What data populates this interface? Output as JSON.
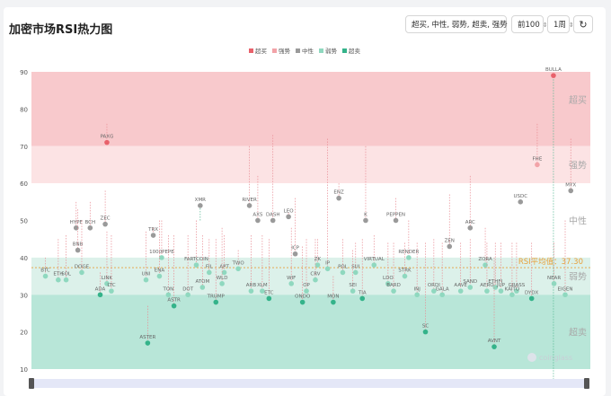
{
  "header": {
    "title": "加密市场RSI热力图",
    "filter_label": "超买, 中性, 弱势, 超卖, 强势",
    "top_label": "前100",
    "interval_label": "1周",
    "refresh_icon": "refresh-icon"
  },
  "colors": {
    "overbought": "#f8c9cc",
    "strong": "#fce3e4",
    "neutral": "#ffffff",
    "weak": "#dcf1ea",
    "oversold": "#b8e6d8",
    "dot_red": "#e8616b",
    "dot_pink": "#f2a3a8",
    "dot_gray": "#9a9a9a",
    "dot_lightgreen": "#8fd8bf",
    "dot_green": "#34b38a",
    "avg_line": "#e8a03a"
  },
  "chart_data": {
    "type": "scatter",
    "ylim": [
      10,
      90
    ],
    "yticks": [
      10,
      20,
      30,
      40,
      50,
      60,
      70,
      80,
      90
    ],
    "legend": [
      {
        "name": "超买",
        "color": "#e8616b"
      },
      {
        "name": "强势",
        "color": "#f2a3a8"
      },
      {
        "name": "中性",
        "color": "#9a9a9a"
      },
      {
        "name": "弱势",
        "color": "#8fd8bf"
      },
      {
        "name": "超卖",
        "color": "#34b38a"
      }
    ],
    "zones": [
      {
        "name": "超买",
        "from": 70,
        "to": 90
      },
      {
        "name": "强势",
        "from": 60,
        "to": 70
      },
      {
        "name": "中性",
        "from": 40,
        "to": 60
      },
      {
        "name": "弱势",
        "from": 30,
        "to": 40
      },
      {
        "name": "超卖",
        "from": 10,
        "to": 30
      }
    ],
    "zone_labels": [
      {
        "text": "超买",
        "y": 82.5
      },
      {
        "text": "强势",
        "y": 65
      },
      {
        "text": "中性",
        "y": 50
      },
      {
        "text": "弱势",
        "y": 35
      },
      {
        "text": "超卖",
        "y": 20
      }
    ],
    "average": {
      "label": "RSI平均值：37.30",
      "value": 37.3
    },
    "watermark": "coinglass",
    "points": [
      {
        "name": "BULLA",
        "x": 0.934,
        "y": 89,
        "cls": "ob",
        "prev": 5
      },
      {
        "name": "PAXG",
        "x": 0.135,
        "y": 71,
        "cls": "ob",
        "prev": 76
      },
      {
        "name": "FHE",
        "x": 0.905,
        "y": 65,
        "cls": "st",
        "prev": 76
      },
      {
        "name": "MYX",
        "x": 0.965,
        "y": 58,
        "cls": "ne",
        "prev": 72
      },
      {
        "name": "USDC",
        "x": 0.875,
        "y": 55,
        "cls": "ne",
        "prev": 55
      },
      {
        "name": "ENZ",
        "x": 0.55,
        "y": 56,
        "cls": "ne",
        "prev": 60
      },
      {
        "name": "XMR",
        "x": 0.302,
        "y": 54,
        "cls": "ne",
        "prev": 50
      },
      {
        "name": "RIVER",
        "x": 0.39,
        "y": 54,
        "cls": "ne",
        "prev": 70
      },
      {
        "name": "AXS",
        "x": 0.405,
        "y": 50,
        "cls": "ne",
        "prev": 62
      },
      {
        "name": "DASH",
        "x": 0.432,
        "y": 50,
        "cls": "ne",
        "prev": 73
      },
      {
        "name": "ZEC",
        "x": 0.132,
        "y": 49,
        "cls": "ne",
        "prev": 58
      },
      {
        "name": "BCH",
        "x": 0.105,
        "y": 48,
        "cls": "ne",
        "prev": 55
      },
      {
        "name": "HYPE",
        "x": 0.08,
        "y": 48,
        "cls": "ne",
        "prev": 55
      },
      {
        "name": "TRX",
        "x": 0.218,
        "y": 46,
        "cls": "ne",
        "prev": 48
      },
      {
        "name": "PEPPEN",
        "x": 0.652,
        "y": 50,
        "cls": "ne",
        "prev": 56
      },
      {
        "name": "K",
        "x": 0.598,
        "y": 50,
        "cls": "ne",
        "prev": 70
      },
      {
        "name": "ARC",
        "x": 0.785,
        "y": 48,
        "cls": "ne",
        "prev": 62
      },
      {
        "name": "ZEN",
        "x": 0.748,
        "y": 43,
        "cls": "ne",
        "prev": 57
      },
      {
        "name": "LEO",
        "x": 0.46,
        "y": 51,
        "cls": "ne",
        "prev": 52
      },
      {
        "name": "ICP",
        "x": 0.472,
        "y": 41,
        "cls": "ne",
        "prev": 56
      },
      {
        "name": "BNB",
        "x": 0.083,
        "y": 42,
        "cls": "ne",
        "prev": 53
      },
      {
        "name": "1000PEPE",
        "x": 0.233,
        "y": 40,
        "cls": "wk",
        "prev": 50
      },
      {
        "name": "ZK",
        "x": 0.512,
        "y": 38,
        "cls": "wk",
        "prev": 45
      },
      {
        "name": "IP",
        "x": 0.53,
        "y": 37,
        "cls": "wk",
        "prev": 72
      },
      {
        "name": "RENDER",
        "x": 0.675,
        "y": 40,
        "cls": "wk",
        "prev": 50
      },
      {
        "name": "VIRTUAL",
        "x": 0.613,
        "y": 38,
        "cls": "wk",
        "prev": 46
      },
      {
        "name": "ZORA",
        "x": 0.812,
        "y": 38,
        "cls": "wk",
        "prev": 48
      },
      {
        "name": "FARTCOIN",
        "x": 0.295,
        "y": 38,
        "cls": "wk",
        "prev": 50
      },
      {
        "name": "DOGE",
        "x": 0.09,
        "y": 36,
        "cls": "wk",
        "prev": 50
      },
      {
        "name": "FIL",
        "x": 0.318,
        "y": 36,
        "cls": "wk",
        "prev": 45
      },
      {
        "name": "APT",
        "x": 0.345,
        "y": 36,
        "cls": "wk",
        "prev": 46
      },
      {
        "name": "TWO",
        "x": 0.37,
        "y": 37,
        "cls": "wk",
        "prev": 42
      },
      {
        "name": "ENA",
        "x": 0.229,
        "y": 35,
        "cls": "wk",
        "prev": 50
      },
      {
        "name": "WLD",
        "x": 0.341,
        "y": 33,
        "cls": "wk",
        "prev": 48
      },
      {
        "name": "WIF",
        "x": 0.465,
        "y": 33,
        "cls": "wk",
        "prev": 48
      },
      {
        "name": "CRV",
        "x": 0.508,
        "y": 34,
        "cls": "wk",
        "prev": 45
      },
      {
        "name": "POL",
        "x": 0.557,
        "y": 36,
        "cls": "wk",
        "prev": 45
      },
      {
        "name": "SUI",
        "x": 0.58,
        "y": 36,
        "cls": "wk",
        "prev": 44
      },
      {
        "name": "STRK",
        "x": 0.668,
        "y": 35,
        "cls": "wk",
        "prev": 44
      },
      {
        "name": "SAND",
        "x": 0.785,
        "y": 32,
        "cls": "wk",
        "prev": 45
      },
      {
        "name": "AAVE",
        "x": 0.768,
        "y": 31,
        "cls": "wk",
        "prev": 44
      },
      {
        "name": "ETHFI",
        "x": 0.83,
        "y": 32,
        "cls": "wk",
        "prev": 44
      },
      {
        "name": "LDO",
        "x": 0.638,
        "y": 33,
        "cls": "wk",
        "prev": 44
      },
      {
        "name": "BARD",
        "x": 0.648,
        "y": 31,
        "cls": "wk",
        "prev": 44
      },
      {
        "name": "INJ",
        "x": 0.69,
        "y": 30,
        "cls": "wk",
        "prev": 44
      },
      {
        "name": "GALA",
        "x": 0.735,
        "y": 30,
        "cls": "wk",
        "prev": 44
      },
      {
        "name": "ORDI",
        "x": 0.72,
        "y": 31,
        "cls": "wk",
        "prev": 45
      },
      {
        "name": "AERO",
        "x": 0.815,
        "y": 31,
        "cls": "wk",
        "prev": 44
      },
      {
        "name": "ATOM",
        "x": 0.306,
        "y": 32,
        "cls": "wk",
        "prev": 46
      },
      {
        "name": "ARB",
        "x": 0.393,
        "y": 31,
        "cls": "wk",
        "prev": 46
      },
      {
        "name": "XLM",
        "x": 0.413,
        "y": 31,
        "cls": "wk",
        "prev": 46
      },
      {
        "name": "SEI",
        "x": 0.575,
        "y": 31,
        "cls": "wk",
        "prev": 42
      },
      {
        "name": "DOT",
        "x": 0.28,
        "y": 30,
        "cls": "wk",
        "prev": 46
      },
      {
        "name": "TON",
        "x": 0.245,
        "y": 30,
        "cls": "wk",
        "prev": 46
      },
      {
        "name": "UNI",
        "x": 0.205,
        "y": 34,
        "cls": "wk",
        "prev": 47
      },
      {
        "name": "LINK",
        "x": 0.135,
        "y": 33,
        "cls": "wk",
        "prev": 47
      },
      {
        "name": "LTC",
        "x": 0.143,
        "y": 31,
        "cls": "wk",
        "prev": 46
      },
      {
        "name": "ETH",
        "x": 0.048,
        "y": 34,
        "cls": "wk",
        "prev": 45
      },
      {
        "name": "SOL",
        "x": 0.062,
        "y": 34,
        "cls": "wk",
        "prev": 46
      },
      {
        "name": "BTC",
        "x": 0.025,
        "y": 35,
        "cls": "wk",
        "prev": 40
      },
      {
        "name": "OP",
        "x": 0.492,
        "y": 31,
        "cls": "wk",
        "prev": 45
      },
      {
        "name": "ONDO",
        "x": 0.485,
        "y": 28,
        "cls": "os",
        "prev": 43
      },
      {
        "name": "MON",
        "x": 0.54,
        "y": 28,
        "cls": "os",
        "prev": 35
      },
      {
        "name": "TIA",
        "x": 0.592,
        "y": 29,
        "cls": "os",
        "prev": 45
      },
      {
        "name": "ETC",
        "x": 0.425,
        "y": 29,
        "cls": "os",
        "prev": 45
      },
      {
        "name": "ADA",
        "x": 0.123,
        "y": 30,
        "cls": "os",
        "prev": 36
      },
      {
        "name": "ASTR",
        "x": 0.255,
        "y": 27,
        "cls": "os",
        "prev": 46
      },
      {
        "name": "TRUMP",
        "x": 0.33,
        "y": 28,
        "cls": "os",
        "prev": 45
      },
      {
        "name": "EIGEN",
        "x": 0.955,
        "y": 30,
        "cls": "wk",
        "prev": 50
      },
      {
        "name": "GRASS",
        "x": 0.868,
        "y": 31,
        "cls": "wk",
        "prev": 44
      },
      {
        "name": "KAITO",
        "x": 0.86,
        "y": 30,
        "cls": "wk",
        "prev": 44
      },
      {
        "name": "JUP",
        "x": 0.84,
        "y": 31,
        "cls": "wk",
        "prev": 44
      },
      {
        "name": "DYDX",
        "x": 0.895,
        "y": 29,
        "cls": "os",
        "prev": 44
      },
      {
        "name": "NEAR",
        "x": 0.935,
        "y": 33,
        "cls": "wk",
        "prev": 44
      },
      {
        "name": "ASTER",
        "x": 0.208,
        "y": 17,
        "cls": "os",
        "prev": 27
      },
      {
        "name": "AVNT",
        "x": 0.828,
        "y": 16,
        "cls": "os",
        "prev": 40
      },
      {
        "name": "SC",
        "x": 0.705,
        "y": 20,
        "cls": "os",
        "prev": 44
      }
    ]
  },
  "scrollbar": {
    "position": 0
  }
}
